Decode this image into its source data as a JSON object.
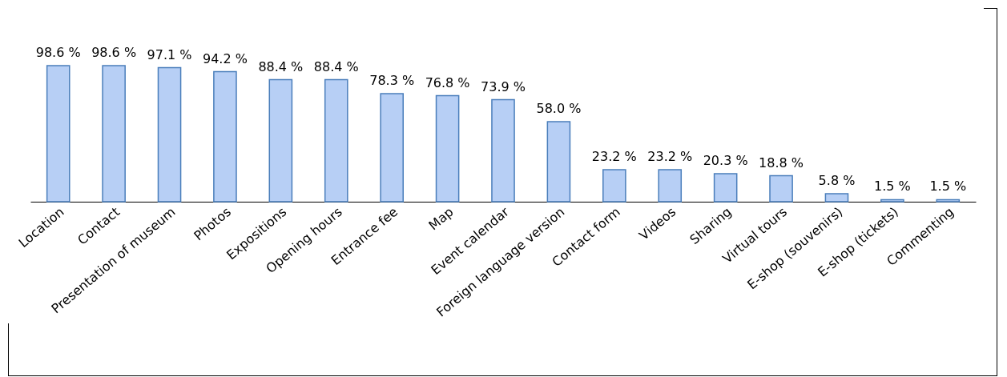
{
  "chart_data": {
    "type": "bar",
    "categories": [
      "Location",
      "Contact",
      "Presentation of museum",
      "Photos",
      "Expositions",
      "Opening hours",
      "Entrance fee",
      "Map",
      "Event calendar",
      "Foreign language version",
      "Contact form",
      "Videos",
      "Sharing",
      "Virtual tours",
      "E-shop (souvenirs)",
      "E-shop (tickets)",
      "Commenting"
    ],
    "values": [
      98.6,
      98.6,
      97.1,
      94.2,
      88.4,
      88.4,
      78.3,
      76.8,
      73.9,
      58.0,
      23.2,
      23.2,
      20.3,
      18.8,
      5.8,
      1.5,
      1.5
    ],
    "value_labels": [
      "98.6 %",
      "98.6 %",
      "97.1 %",
      "94.2 %",
      "88.4 %",
      "88.4 %",
      "78.3 %",
      "76.8 %",
      "73.9 %",
      "58.0 %",
      "23.2 %",
      "23.2 %",
      "20.3 %",
      "18.8 %",
      "5.8 %",
      "1.5 %",
      "1.5 %"
    ],
    "color": "#b7cff5"
  }
}
